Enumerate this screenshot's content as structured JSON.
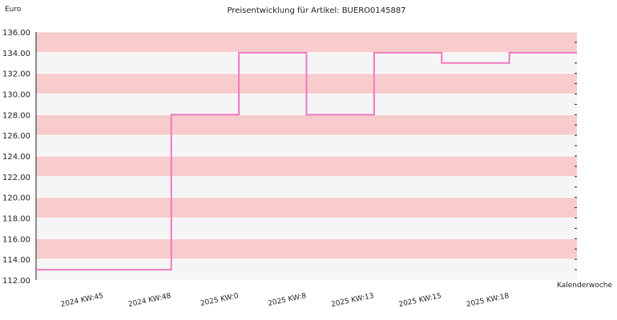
{
  "chart_data": {
    "type": "line",
    "step": true,
    "title": "Preisentwicklung für Artikel: BUERO0145887",
    "ylabel": "Euro",
    "xlabel": "Kalenderwoche",
    "ylim": [
      112,
      136
    ],
    "yticks": [
      112,
      114,
      116,
      118,
      120,
      122,
      124,
      126,
      128,
      130,
      132,
      134,
      136
    ],
    "ytick_labels": [
      "112.00",
      "114.00",
      "116.00",
      "118.00",
      "120.00",
      "122.00",
      "124.00",
      "126.00",
      "128.00",
      "130.00",
      "132.00",
      "134.00",
      "136.00"
    ],
    "x_labels": [
      "2024 KW:45",
      "2024 KW:48",
      "2025 KW:0",
      "2025 KW:8",
      "2025 KW:13",
      "2025 KW:15",
      "2025 KW:18"
    ],
    "series": [
      {
        "values": [
          113,
          113,
          128,
          134,
          128,
          134,
          133,
          134
        ]
      }
    ],
    "grid": true,
    "colors": {
      "line": "#f07ac0",
      "band_pink": "#f8cccc",
      "band_light": "#f5f5f5",
      "grid": "#ffffff"
    }
  }
}
